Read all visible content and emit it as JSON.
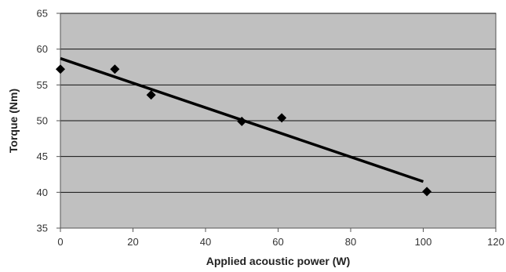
{
  "chart_data": {
    "type": "scatter",
    "title": "",
    "xlabel": "Applied acoustic power (W)",
    "ylabel": "Torque (Nm)",
    "xlim": [
      0,
      120
    ],
    "ylim": [
      35,
      65
    ],
    "x_ticks": [
      0,
      20,
      40,
      60,
      80,
      100,
      120
    ],
    "y_ticks": [
      35,
      40,
      45,
      50,
      55,
      60,
      65
    ],
    "grid": "horizontal",
    "legend": "none",
    "plot_background": "#c0c0c0",
    "marker_color": "#000000",
    "marker_shape": "diamond",
    "series": [
      {
        "x": [
          0,
          15,
          25,
          50,
          61,
          101
        ],
        "y": [
          57.2,
          57.2,
          53.6,
          49.9,
          50.4,
          40.1
        ]
      }
    ],
    "trendline": {
      "type": "linear",
      "points": [
        [
          0,
          58.7
        ],
        [
          100,
          41.5
        ]
      ],
      "color": "#000000"
    }
  }
}
